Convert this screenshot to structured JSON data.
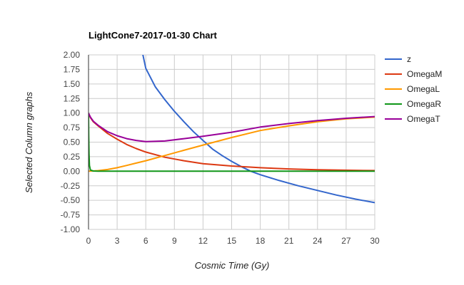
{
  "chart_data": {
    "type": "line",
    "title": "LightCone7-2017-01-30 Chart",
    "xlabel": "Cosmic Time (Gy)",
    "ylabel": "Selected Column graphs",
    "xlim": [
      0,
      30
    ],
    "ylim": [
      -1,
      2
    ],
    "xticks": [
      "0",
      "3",
      "6",
      "9",
      "12",
      "15",
      "18",
      "21",
      "24",
      "27",
      "30"
    ],
    "yticks": [
      "2.00",
      "1.75",
      "1.50",
      "1.25",
      "1.00",
      "0.75",
      "0.50",
      "0.25",
      "0.00",
      "-0.25",
      "-0.50",
      "-0.75",
      "-1.00"
    ],
    "grid": true,
    "legend_position": "right",
    "series": [
      {
        "name": "z",
        "color": "#3366cc",
        "x": [
          5.0,
          5.7,
          6,
          7,
          8,
          9,
          10,
          11,
          12,
          13,
          14,
          15,
          16,
          17,
          18,
          20,
          22,
          24,
          26,
          28,
          30
        ],
        "y": [
          2.4,
          2.0,
          1.77,
          1.45,
          1.23,
          1.03,
          0.85,
          0.68,
          0.53,
          0.38,
          0.27,
          0.17,
          0.08,
          0.0,
          -0.06,
          -0.16,
          -0.25,
          -0.33,
          -0.41,
          -0.48,
          -0.54
        ]
      },
      {
        "name": "OmegaM",
        "color": "#dc3912",
        "x": [
          0,
          0.2,
          0.5,
          1,
          2,
          3,
          4,
          5,
          6,
          8,
          10,
          12,
          15,
          18,
          21,
          24,
          27,
          30
        ],
        "y": [
          1.0,
          0.92,
          0.85,
          0.78,
          0.65,
          0.55,
          0.46,
          0.39,
          0.33,
          0.24,
          0.18,
          0.13,
          0.09,
          0.06,
          0.04,
          0.025,
          0.018,
          0.012
        ]
      },
      {
        "name": "OmegaL",
        "color": "#ff9900",
        "x": [
          0,
          1,
          2,
          3,
          4,
          5,
          6,
          8,
          10,
          12,
          15,
          18,
          21,
          24,
          27,
          30
        ],
        "y": [
          0,
          0.01,
          0.03,
          0.06,
          0.1,
          0.14,
          0.18,
          0.27,
          0.36,
          0.45,
          0.58,
          0.7,
          0.78,
          0.85,
          0.9,
          0.93
        ]
      },
      {
        "name": "OmegaR",
        "color": "#109618",
        "x": [
          0,
          0.02,
          0.05,
          0.1,
          0.2,
          0.5,
          1,
          30
        ],
        "y": [
          1.0,
          0.6,
          0.3,
          0.1,
          0.02,
          0.004,
          0.001,
          0
        ]
      },
      {
        "name": "OmegaT",
        "color": "#990099",
        "x": [
          0,
          0.2,
          0.5,
          1,
          2,
          3,
          4,
          5,
          6,
          8,
          10,
          12,
          15,
          18,
          21,
          24,
          27,
          30
        ],
        "y": [
          1.0,
          0.93,
          0.86,
          0.79,
          0.68,
          0.61,
          0.56,
          0.53,
          0.51,
          0.52,
          0.56,
          0.6,
          0.67,
          0.76,
          0.82,
          0.87,
          0.91,
          0.94
        ]
      }
    ]
  }
}
